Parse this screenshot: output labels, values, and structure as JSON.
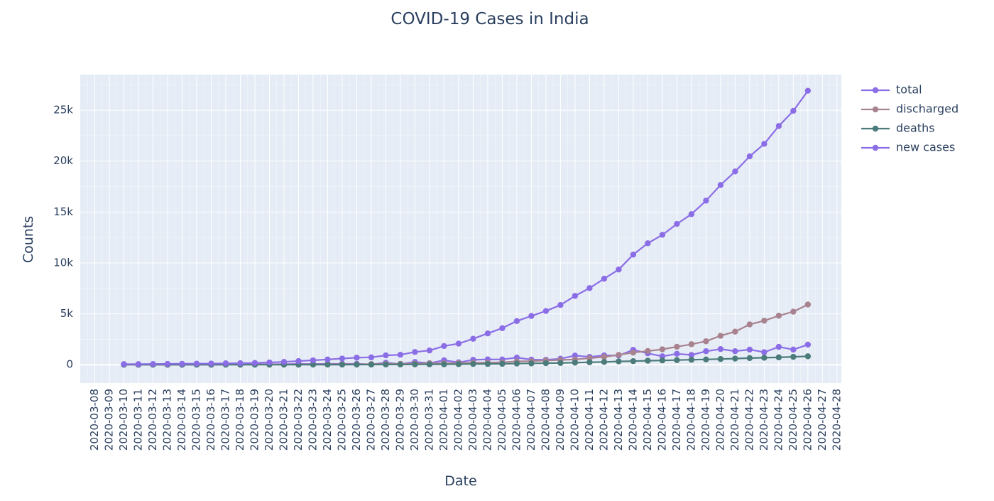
{
  "chart_data": {
    "type": "line",
    "title": "COVID-19 Cases in India",
    "xlabel": "Date",
    "ylabel": "Counts",
    "x_ticks": [
      "2020-03-08",
      "2020-03-09",
      "2020-03-10",
      "2020-03-11",
      "2020-03-12",
      "2020-03-13",
      "2020-03-14",
      "2020-03-15",
      "2020-03-16",
      "2020-03-17",
      "2020-03-18",
      "2020-03-19",
      "2020-03-20",
      "2020-03-21",
      "2020-03-22",
      "2020-03-23",
      "2020-03-24",
      "2020-03-25",
      "2020-03-26",
      "2020-03-27",
      "2020-03-28",
      "2020-03-29",
      "2020-03-30",
      "2020-03-31",
      "2020-04-01",
      "2020-04-02",
      "2020-04-03",
      "2020-04-04",
      "2020-04-05",
      "2020-04-06",
      "2020-04-07",
      "2020-04-08",
      "2020-04-09",
      "2020-04-10",
      "2020-04-11",
      "2020-04-12",
      "2020-04-13",
      "2020-04-14",
      "2020-04-15",
      "2020-04-16",
      "2020-04-17",
      "2020-04-18",
      "2020-04-19",
      "2020-04-20",
      "2020-04-21",
      "2020-04-22",
      "2020-04-23",
      "2020-04-24",
      "2020-04-25",
      "2020-04-26",
      "2020-04-27",
      "2020-04-28"
    ],
    "x": [
      "2020-03-10",
      "2020-03-11",
      "2020-03-12",
      "2020-03-13",
      "2020-03-14",
      "2020-03-15",
      "2020-03-16",
      "2020-03-17",
      "2020-03-18",
      "2020-03-19",
      "2020-03-20",
      "2020-03-21",
      "2020-03-22",
      "2020-03-23",
      "2020-03-24",
      "2020-03-25",
      "2020-03-26",
      "2020-03-27",
      "2020-03-28",
      "2020-03-29",
      "2020-03-30",
      "2020-03-31",
      "2020-04-01",
      "2020-04-02",
      "2020-04-03",
      "2020-04-04",
      "2020-04-05",
      "2020-04-06",
      "2020-04-07",
      "2020-04-08",
      "2020-04-09",
      "2020-04-10",
      "2020-04-11",
      "2020-04-12",
      "2020-04-13",
      "2020-04-14",
      "2020-04-15",
      "2020-04-16",
      "2020-04-17",
      "2020-04-18",
      "2020-04-19",
      "2020-04-20",
      "2020-04-21",
      "2020-04-22",
      "2020-04-23",
      "2020-04-24",
      "2020-04-25",
      "2020-04-26"
    ],
    "y_ticks": [
      0,
      5000,
      10000,
      15000,
      20000,
      25000
    ],
    "y_tick_labels": [
      "0",
      "5k",
      "10k",
      "15k",
      "20k",
      "25k"
    ],
    "ylim": [
      -1800,
      28500
    ],
    "grid": true,
    "legend_position": "top-right",
    "series": [
      {
        "name": "total",
        "color": "#8b6ee6",
        "values": [
          50,
          60,
          73,
          82,
          90,
          107,
          114,
          137,
          151,
          173,
          223,
          283,
          360,
          433,
          519,
          606,
          694,
          724,
          918,
          979,
          1251,
          1397,
          1834,
          2069,
          2547,
          3072,
          3588,
          4289,
          4789,
          5274,
          5865,
          6761,
          7529,
          8447,
          9352,
          10815,
          11933,
          12759,
          13835,
          14792,
          16116,
          17656,
          18985,
          20471,
          21700,
          23452,
          24942,
          26917
        ]
      },
      {
        "name": "discharged",
        "color": "#a8838f",
        "values": [
          3,
          4,
          4,
          4,
          10,
          13,
          13,
          14,
          14,
          20,
          23,
          23,
          24,
          35,
          40,
          43,
          45,
          66,
          75,
          86,
          102,
          133,
          144,
          155,
          191,
          213,
          229,
          326,
          353,
          411,
          469,
          516,
          645,
          765,
          970,
          1190,
          1344,
          1515,
          1767,
          2015,
          2302,
          2841,
          3252,
          3960,
          4325,
          4813,
          5210,
          5914
        ]
      },
      {
        "name": "deaths",
        "color": "#4b7b7a",
        "values": [
          0,
          0,
          1,
          2,
          2,
          2,
          2,
          3,
          3,
          4,
          4,
          4,
          7,
          9,
          10,
          10,
          16,
          17,
          19,
          25,
          32,
          35,
          41,
          53,
          72,
          75,
          86,
          114,
          124,
          149,
          169,
          206,
          242,
          273,
          324,
          353,
          392,
          420,
          452,
          488,
          519,
          559,
          603,
          652,
          686,
          723,
          775,
          826
        ]
      },
      {
        "name": "new cases",
        "color": "#8b6ee6",
        "values": [
          50,
          10,
          13,
          9,
          8,
          17,
          7,
          23,
          14,
          22,
          50,
          60,
          77,
          73,
          86,
          87,
          88,
          30,
          194,
          61,
          272,
          146,
          437,
          235,
          478,
          525,
          516,
          701,
          500,
          485,
          591,
          896,
          768,
          918,
          905,
          1463,
          1118,
          826,
          1076,
          957,
          1324,
          1540,
          1329,
          1486,
          1229,
          1752,
          1490,
          1975
        ]
      }
    ]
  }
}
